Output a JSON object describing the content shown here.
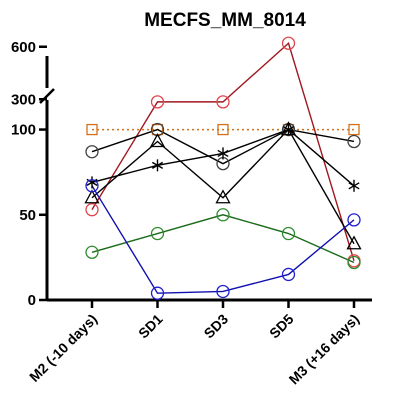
{
  "chart_data": {
    "type": "line",
    "title": "MECFS_MM_8014",
    "xlabel": "",
    "ylabel": "",
    "categories": [
      "M2 (-10 days)",
      "SD1",
      "SD3",
      "SD5",
      "M3 (+16 days)"
    ],
    "y_axis": {
      "broken": true,
      "lower_range": [
        0,
        115
      ],
      "upper_range": [
        250,
        650
      ],
      "lower_ticks": [
        0,
        50,
        100
      ],
      "upper_ticks": [
        300,
        600
      ]
    },
    "grid": false,
    "legend": "none",
    "series": [
      {
        "values": [
          53,
          285,
          285,
          620,
          23
        ],
        "color": "#e0454b",
        "marker": "circle",
        "line_color": "#a01820",
        "line_style": "solid"
      },
      {
        "values": [
          100,
          100,
          100,
          100,
          100
        ],
        "color": "#d4701a",
        "marker": "square",
        "line_color": "#d4701a",
        "line_style": "dotted"
      },
      {
        "values": [
          87,
          100,
          80,
          100,
          93
        ],
        "color": "#404040",
        "marker": "circle",
        "line_color": "#000000",
        "line_style": "solid"
      },
      {
        "values": [
          60,
          93,
          60,
          100,
          33
        ],
        "color": "#000000",
        "marker": "triangle",
        "line_color": "#000000",
        "line_style": "solid"
      },
      {
        "values": [
          69,
          79,
          86,
          100,
          67
        ],
        "color": "#000000",
        "marker": "asterisk",
        "line_color": "#000000",
        "line_style": "solid"
      },
      {
        "values": [
          28,
          39,
          50,
          39,
          22
        ],
        "color": "#2e8b2e",
        "marker": "circle",
        "line_color": "#1a6b1a",
        "line_style": "solid"
      },
      {
        "values": [
          67,
          4,
          5,
          15,
          47
        ],
        "color": "#2020d0",
        "marker": "circle",
        "line_color": "#1010b0",
        "line_style": "solid"
      }
    ]
  }
}
